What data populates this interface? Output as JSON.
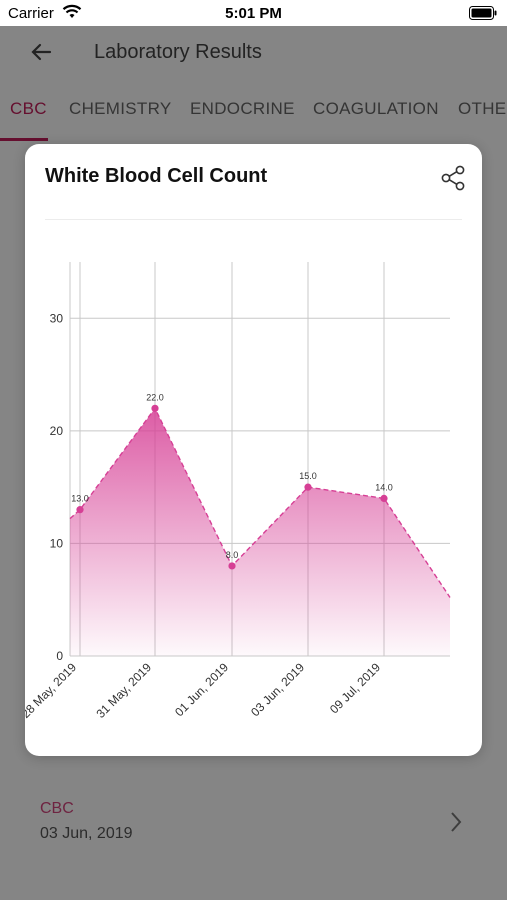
{
  "status_bar": {
    "carrier": "Carrier",
    "time": "5:01 PM"
  },
  "app_bar": {
    "title": "Laboratory Results"
  },
  "tabs": [
    {
      "label": "CBC",
      "active": true
    },
    {
      "label": "CHEMISTRY",
      "active": false
    },
    {
      "label": "ENDOCRINE",
      "active": false
    },
    {
      "label": "COAGULATION",
      "active": false
    },
    {
      "label": "OTHER",
      "active": false
    }
  ],
  "list_item": {
    "title": "CBC",
    "date": "03 Jun, 2019"
  },
  "modal": {
    "title": "White Blood Cell Count",
    "share_icon": "share-icon"
  },
  "colors": {
    "accent": "#c21e5a",
    "series": "#d63f95",
    "grid": "#c8c8c8"
  },
  "chart_data": {
    "type": "area",
    "title": "White Blood Cell Count",
    "xlabel": "",
    "ylabel": "",
    "ylim": [
      0,
      35
    ],
    "yticks": [
      0,
      10,
      20,
      30
    ],
    "x_categories": [
      "28 May, 2019",
      "31 May, 2019",
      "01 Jun, 2019",
      "03 Jun, 2019",
      "09 Jul, 2019"
    ],
    "points": [
      {
        "x": "28 May, 2019",
        "y": 13.0,
        "label": "13.0"
      },
      {
        "x": "31 May, 2019",
        "y": 22.0,
        "label": "22.0"
      },
      {
        "x": "01 Jun, 2019",
        "y": 8.0,
        "label": "8.0"
      },
      {
        "x": "03 Jun, 2019",
        "y": 15.0,
        "label": "15.0"
      },
      {
        "x": "09 Jul, 2019",
        "y": 14.0,
        "label": "14.0"
      }
    ],
    "grid": true,
    "line_style": "dashed",
    "legend": "none"
  }
}
